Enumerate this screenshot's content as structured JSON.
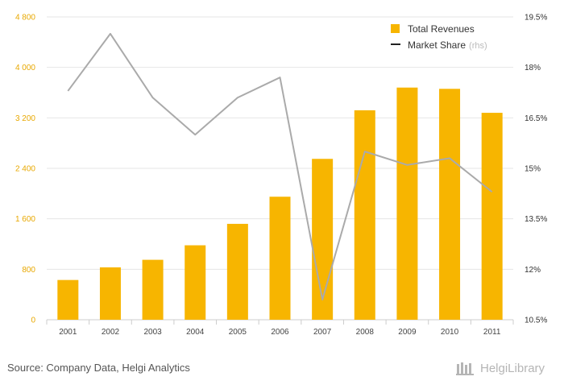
{
  "chart_data": {
    "type": "bar",
    "categories": [
      "2001",
      "2002",
      "2003",
      "2004",
      "2005",
      "2006",
      "2007",
      "2008",
      "2009",
      "2010",
      "2011"
    ],
    "series": [
      {
        "name": "Total Revenues",
        "type": "bar",
        "axis": "left",
        "color": "#f7b500",
        "values": [
          630,
          830,
          950,
          1180,
          1520,
          1950,
          2550,
          3320,
          3680,
          3660,
          3280
        ]
      },
      {
        "name": "Market Share",
        "suffix": "(rhs)",
        "type": "line",
        "axis": "right",
        "color": "#aaaaaa",
        "values": [
          17.3,
          19.0,
          17.1,
          16.0,
          17.1,
          17.7,
          11.1,
          15.5,
          15.1,
          15.3,
          14.3
        ]
      }
    ],
    "y_left": {
      "ylim": [
        0,
        4800
      ],
      "ticks": [
        "0",
        "800",
        "1 600",
        "2 400",
        "3 200",
        "4 000",
        "4 800"
      ]
    },
    "y_right": {
      "ylim": [
        10.5,
        19.5
      ],
      "ticks": [
        "10.5%",
        "12%",
        "13.5%",
        "15%",
        "16.5%",
        "18%",
        "19.5%"
      ]
    },
    "grid": true,
    "legend_position": "top-right"
  },
  "footer": {
    "source": "Source: Company Data, Helgi Analytics",
    "logo_text": "HelgiLibrary"
  }
}
